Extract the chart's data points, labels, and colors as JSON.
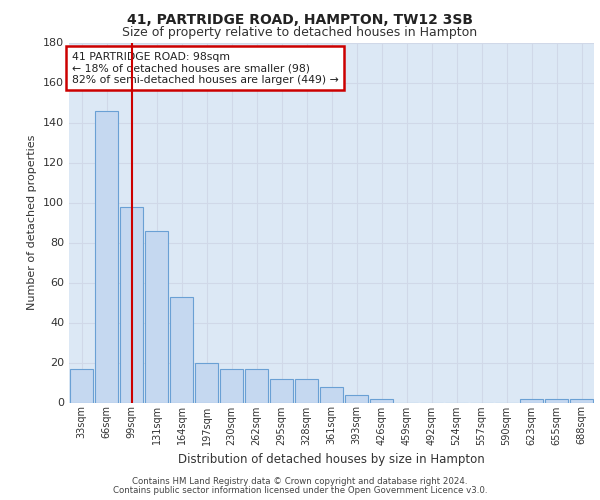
{
  "title1": "41, PARTRIDGE ROAD, HAMPTON, TW12 3SB",
  "title2": "Size of property relative to detached houses in Hampton",
  "xlabel": "Distribution of detached houses by size in Hampton",
  "ylabel": "Number of detached properties",
  "bar_color": "#c5d8f0",
  "bar_edge_color": "#6aa0d4",
  "grid_color": "#d0d8e8",
  "bg_color": "#dce8f5",
  "vline_color": "#cc0000",
  "vline_x": 2,
  "annotation_text1": "41 PARTRIDGE ROAD: 98sqm",
  "annotation_text2": "← 18% of detached houses are smaller (98)",
  "annotation_text3": "82% of semi-detached houses are larger (449) →",
  "annotation_box_color": "#ffffff",
  "annotation_edge_color": "#cc0000",
  "categories": [
    "33sqm",
    "66sqm",
    "99sqm",
    "131sqm",
    "164sqm",
    "197sqm",
    "230sqm",
    "262sqm",
    "295sqm",
    "328sqm",
    "361sqm",
    "393sqm",
    "426sqm",
    "459sqm",
    "492sqm",
    "524sqm",
    "557sqm",
    "590sqm",
    "623sqm",
    "655sqm",
    "688sqm"
  ],
  "values": [
    17,
    146,
    98,
    86,
    53,
    20,
    17,
    17,
    12,
    12,
    8,
    4,
    2,
    0,
    0,
    0,
    0,
    0,
    2,
    2,
    2
  ],
  "ylim": [
    0,
    180
  ],
  "yticks": [
    0,
    20,
    40,
    60,
    80,
    100,
    120,
    140,
    160,
    180
  ],
  "footer1": "Contains HM Land Registry data © Crown copyright and database right 2024.",
  "footer2": "Contains public sector information licensed under the Open Government Licence v3.0."
}
